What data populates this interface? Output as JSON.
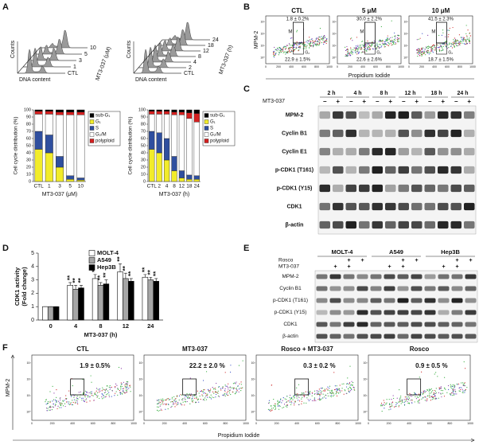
{
  "panels": {
    "A": {
      "letter": "A",
      "histograms": [
        {
          "y_label": "Counts",
          "x_label": "DNA content",
          "z_label": "MT3-037 (μM)",
          "layers": [
            "CTL",
            "1",
            "3",
            "5",
            "10"
          ]
        },
        {
          "y_label": "Counts",
          "x_label": "DNA content",
          "z_label": "MT3-037 (h)",
          "layers": [
            "CTL",
            "2",
            "4",
            "8",
            "12",
            "18",
            "24"
          ]
        }
      ]
    },
    "B": {
      "letter": "B",
      "y_label": "MPM-2",
      "x_label": "Propidium Iodide",
      "m_label": "M",
      "g2_label": "G₂",
      "x_ticks": [
        0,
        200,
        400,
        600,
        800,
        1000
      ],
      "y_ticks": [
        "10⁰",
        "10¹",
        "10²",
        "10³"
      ],
      "plots": [
        {
          "title": "CTL",
          "m_pct": "1.8 ± 0.2%",
          "g2_pct": "22.9 ± 1.5%"
        },
        {
          "title": "5 μM",
          "m_pct": "30.0 ± 2.2%",
          "g2_pct": "22.6 ± 2.6%"
        },
        {
          "title": "10 μM",
          "m_pct": "41.5 ± 2.3%",
          "g2_pct": "18.7 ± 1.5%"
        }
      ]
    },
    "C": {
      "letter": "C",
      "treatment": "MT3-037",
      "times": [
        "2 h",
        "4 h",
        "8 h",
        "12 h",
        "18 h",
        "24 h"
      ],
      "signs": [
        "−",
        "+",
        "−",
        "+",
        "−",
        "+",
        "−",
        "+",
        "−",
        "+",
        "−",
        "+"
      ],
      "rows": [
        "MPM-2",
        "Cyclin B1",
        "Cyclin E1",
        "p-CDK1 (T161)",
        "p-CDK1 (Y15)",
        "CDK1",
        "β-actin"
      ]
    },
    "D": {
      "letter": "D"
    },
    "E": {
      "letter": "E",
      "cell_lines": [
        "MOLT-4",
        "A549",
        "Hep3B"
      ],
      "treatments": [
        {
          "name": "Rosco",
          "signs": [
            null,
            null,
            "+",
            "+",
            null,
            null,
            "+",
            "+",
            null,
            null,
            "+",
            "+"
          ]
        },
        {
          "name": "MT3-037",
          "signs": [
            null,
            "+",
            "+",
            null,
            null,
            "+",
            "+",
            null,
            null,
            "+",
            "+",
            null
          ]
        }
      ],
      "rows": [
        "MPM-2",
        "Cyclin B1",
        "p-CDK1 (T161)",
        "p-CDK1 (Y15)",
        "CDK1",
        "β-actin"
      ]
    },
    "F": {
      "letter": "F",
      "y_label": "MPM-2",
      "x_label": "Propidium Iodide",
      "x_ticks": [
        0,
        200,
        400,
        600,
        800,
        1000
      ],
      "y_ticks": [
        "10⁰",
        "10¹",
        "10²",
        "10³"
      ],
      "plots": [
        {
          "title": "CTL",
          "pct": "1.9 ± 0.5%"
        },
        {
          "title": "MT3-037",
          "pct": "22.2 ± 2.0 %"
        },
        {
          "title": "Rosco + MT3-037",
          "pct": "0.3 ± 0.2 %"
        },
        {
          "title": "Rosco",
          "pct": "0.9 ± 0.5 %"
        }
      ]
    }
  },
  "chart_data": [
    {
      "type": "stacked_bar",
      "y_label": "Cell cycle distribution (%)",
      "x_label": "MT3-037 (μM)",
      "categories": [
        "CTL",
        "1",
        "3",
        "5",
        "10"
      ],
      "ylim": [
        0,
        100
      ],
      "yticks": [
        0,
        10,
        20,
        30,
        40,
        50,
        60,
        70,
        80,
        90,
        100
      ],
      "series": [
        {
          "name": "sub-G₁",
          "color": "#000000",
          "values": [
            2,
            2,
            3,
            3,
            3
          ]
        },
        {
          "name": "G₁",
          "color": "#f2ec2a",
          "values": [
            45,
            40,
            20,
            3,
            2
          ]
        },
        {
          "name": "S",
          "color": "#2f4f9f",
          "values": [
            25,
            25,
            15,
            5,
            3
          ]
        },
        {
          "name": "G₂/M",
          "color": "#ffffff",
          "values": [
            24,
            29,
            58,
            85,
            88
          ]
        },
        {
          "name": "polyploid",
          "color": "#d42020",
          "values": [
            4,
            4,
            4,
            4,
            4
          ]
        }
      ]
    },
    {
      "type": "stacked_bar",
      "y_label": "Cell cycle distribution (%)",
      "x_label": "MT3-037 (h)",
      "categories": [
        "CTL",
        "2",
        "4",
        "8",
        "12",
        "18",
        "24"
      ],
      "ylim": [
        0,
        100
      ],
      "yticks": [
        0,
        10,
        20,
        30,
        40,
        50,
        60,
        70,
        80,
        90,
        100
      ],
      "series": [
        {
          "name": "sub-G₁",
          "color": "#000000",
          "values": [
            2,
            2,
            2,
            3,
            3,
            4,
            5
          ]
        },
        {
          "name": "G₁",
          "color": "#f2ec2a",
          "values": [
            45,
            40,
            30,
            15,
            5,
            3,
            3
          ]
        },
        {
          "name": "S",
          "color": "#2f4f9f",
          "values": [
            25,
            28,
            30,
            20,
            10,
            6,
            5
          ]
        },
        {
          "name": "G₂/M",
          "color": "#ffffff",
          "values": [
            24,
            26,
            34,
            58,
            78,
            79,
            75
          ]
        },
        {
          "name": "polyploid",
          "color": "#d42020",
          "values": [
            4,
            4,
            4,
            4,
            4,
            8,
            12
          ]
        }
      ]
    },
    {
      "type": "bar",
      "y_label": [
        "CDK1 activity",
        "(Fold change)"
      ],
      "x_label": "MT3-037 (h)",
      "categories": [
        "0",
        "4",
        "8",
        "12",
        "24"
      ],
      "ylim": [
        0,
        5
      ],
      "yticks": [
        0,
        1,
        2,
        3,
        4,
        5
      ],
      "series": [
        {
          "name": "MOLT-4",
          "color": "#ffffff",
          "values": [
            1,
            2.6,
            3.1,
            3.6,
            3.2
          ],
          "errors": [
            0,
            0.2,
            0.3,
            0.6,
            0.2
          ],
          "marks": [
            null,
            "**",
            "**",
            "**",
            "**"
          ]
        },
        {
          "name": "A549",
          "color": "#a6a6a6",
          "values": [
            1,
            2.3,
            2.6,
            3.1,
            3.0
          ],
          "errors": [
            0,
            0.3,
            0.2,
            0.4,
            0.2
          ],
          "marks": [
            null,
            "**",
            "**",
            "**",
            "**"
          ]
        },
        {
          "name": "Hep3B",
          "color": "#000000",
          "values": [
            1,
            2.4,
            2.7,
            2.9,
            2.9
          ],
          "errors": [
            0,
            0.2,
            0.3,
            0.2,
            0.2
          ],
          "marks": [
            null,
            "**",
            "**",
            "**",
            "**"
          ]
        }
      ]
    }
  ]
}
